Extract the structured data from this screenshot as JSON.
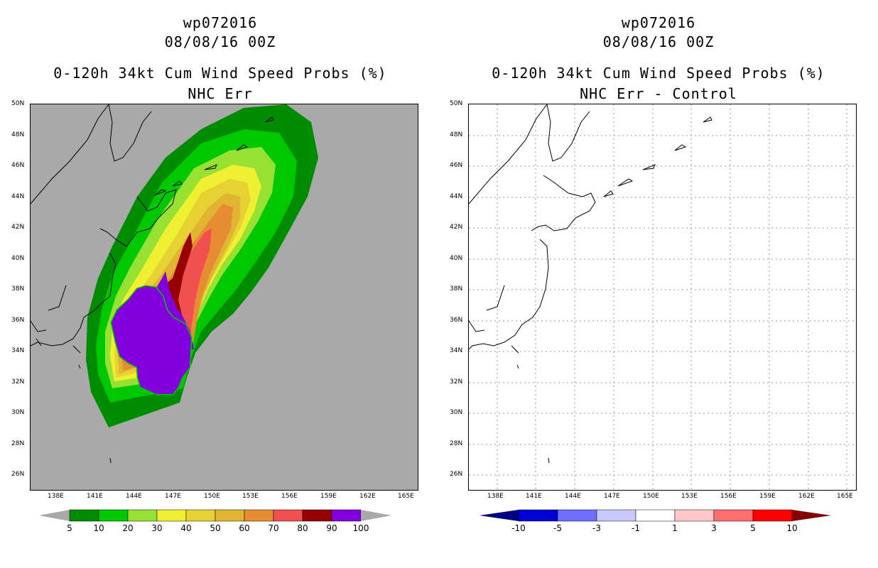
{
  "left_panel": {
    "storm_id": "wp072016",
    "datetime": "08/08/16 00Z",
    "product": "0-120h 34kt Cum Wind Speed Probs (%)",
    "subtitle": "NHC Err",
    "background_color": "#a9a9a9",
    "colorbar": {
      "labels": [
        "5",
        "10",
        "20",
        "30",
        "40",
        "50",
        "60",
        "70",
        "80",
        "90",
        "100"
      ],
      "colors": [
        "#008c00",
        "#00c800",
        "#96e132",
        "#f0f032",
        "#e6d232",
        "#e1b432",
        "#e68c32",
        "#f05050",
        "#960000",
        "#8200dc"
      ],
      "end_color": "#a9a9a9"
    }
  },
  "right_panel": {
    "storm_id": "wp072016",
    "datetime": "08/08/16 00Z",
    "product": "0-120h 34kt Cum Wind Speed Probs (%)",
    "subtitle": "NHC Err - Control",
    "background_color": "#ffffff",
    "colorbar": {
      "labels": [
        "-10",
        "-5",
        "-3",
        "-1",
        "1",
        "3",
        "5",
        "10"
      ],
      "colors": [
        "#0000d2",
        "#6e6eff",
        "#c8c8ff",
        "#ffffff",
        "#ffc8c8",
        "#ff6e6e",
        "#ff0000"
      ],
      "low_color": "#000082",
      "high_color": "#820000"
    }
  },
  "axes": {
    "lat_labels": [
      "50N",
      "48N",
      "46N",
      "44N",
      "42N",
      "40N",
      "38N",
      "36N",
      "34N",
      "32N",
      "30N",
      "28N",
      "26N"
    ],
    "lon_labels": [
      "138E",
      "141E",
      "144E",
      "147E",
      "150E",
      "153E",
      "156E",
      "159E",
      "162E",
      "165E"
    ]
  }
}
